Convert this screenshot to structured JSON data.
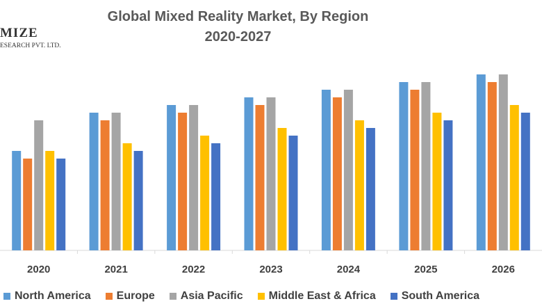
{
  "logo": {
    "word": "MIZE",
    "subtitle": "ESEARCH PVT. LTD."
  },
  "chart_data": {
    "type": "bar",
    "title_line1": "Global Mixed Reality Market, By Region",
    "title_line2": "2020-2027",
    "xlabel": "",
    "ylabel": "",
    "y_axis_shown": false,
    "ylim": [
      0,
      23
    ],
    "grid": false,
    "legend_position": "bottom",
    "categories": [
      "2020",
      "2021",
      "2022",
      "2023",
      "2024",
      "2025",
      "2026"
    ],
    "series": [
      {
        "name": "North America",
        "color": "#5B9BD5",
        "values": [
          13,
          18,
          19,
          20,
          21,
          22,
          23
        ]
      },
      {
        "name": "Europe",
        "color": "#ED7D31",
        "values": [
          12,
          17,
          18,
          19,
          20,
          21,
          22
        ]
      },
      {
        "name": "Asia Pacific",
        "color": "#A5A5A5",
        "values": [
          17,
          18,
          19,
          20,
          21,
          22,
          23
        ]
      },
      {
        "name": "Middle East & Africa",
        "color": "#FFC000",
        "values": [
          13,
          14,
          15,
          16,
          17,
          18,
          19
        ]
      },
      {
        "name": "South America",
        "color": "#4472C4",
        "values": [
          12,
          13,
          14,
          15,
          16,
          17,
          18
        ]
      }
    ]
  }
}
